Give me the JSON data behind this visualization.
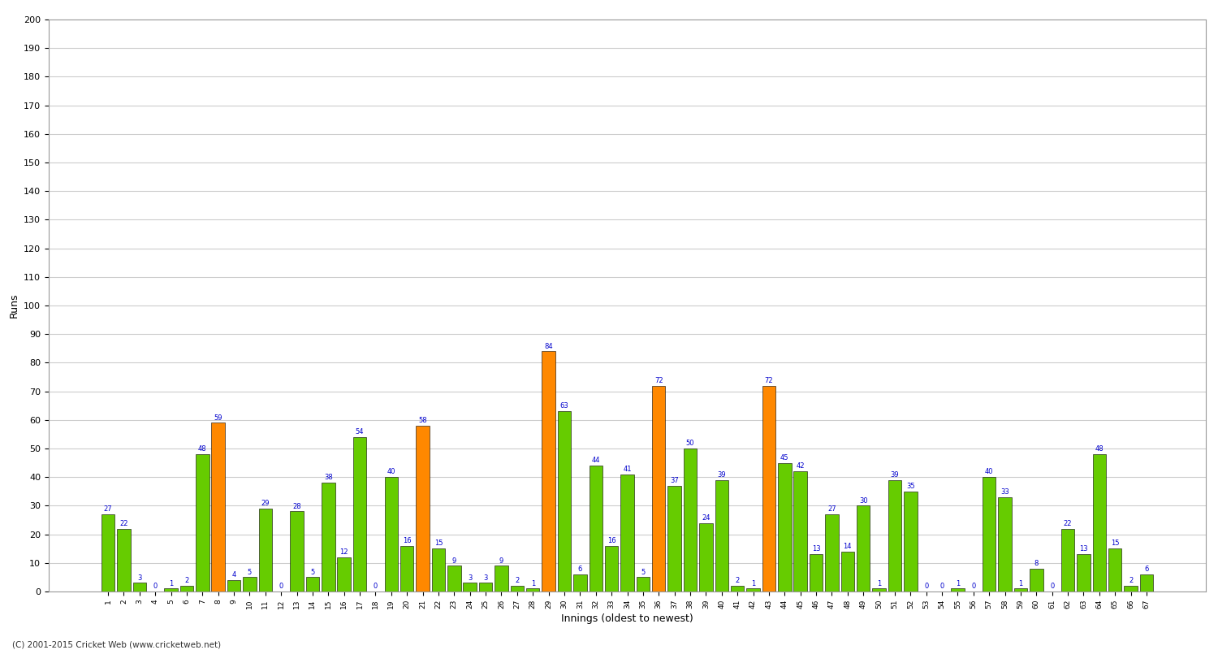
{
  "title": "",
  "xlabel": "Innings (oldest to newest)",
  "ylabel": "Runs",
  "background_color": "#ffffff",
  "grid_color": "#cccccc",
  "bar_color_green": "#66cc00",
  "bar_color_orange": "#ff8800",
  "label_color": "#0000cc",
  "ylim": [
    0,
    200
  ],
  "yticks": [
    0,
    10,
    20,
    30,
    40,
    50,
    60,
    70,
    80,
    90,
    100,
    110,
    120,
    130,
    140,
    150,
    160,
    170,
    180,
    190,
    200
  ],
  "innings": [
    {
      "num": 1,
      "runs": 27,
      "not_out": false
    },
    {
      "num": 2,
      "runs": 22,
      "not_out": false
    },
    {
      "num": 3,
      "runs": 3,
      "not_out": false
    },
    {
      "num": 4,
      "runs": 0,
      "not_out": false
    },
    {
      "num": 5,
      "runs": 1,
      "not_out": false
    },
    {
      "num": 6,
      "runs": 2,
      "not_out": false
    },
    {
      "num": 7,
      "runs": 48,
      "not_out": false
    },
    {
      "num": 8,
      "runs": 59,
      "not_out": true
    },
    {
      "num": 9,
      "runs": 4,
      "not_out": false
    },
    {
      "num": 10,
      "runs": 5,
      "not_out": false
    },
    {
      "num": 11,
      "runs": 29,
      "not_out": false
    },
    {
      "num": 12,
      "runs": 0,
      "not_out": false
    },
    {
      "num": 13,
      "runs": 28,
      "not_out": false
    },
    {
      "num": 14,
      "runs": 5,
      "not_out": false
    },
    {
      "num": 15,
      "runs": 38,
      "not_out": false
    },
    {
      "num": 16,
      "runs": 12,
      "not_out": false
    },
    {
      "num": 17,
      "runs": 54,
      "not_out": false
    },
    {
      "num": 18,
      "runs": 0,
      "not_out": false
    },
    {
      "num": 19,
      "runs": 40,
      "not_out": false
    },
    {
      "num": 20,
      "runs": 16,
      "not_out": false
    },
    {
      "num": 21,
      "runs": 58,
      "not_out": true
    },
    {
      "num": 22,
      "runs": 15,
      "not_out": false
    },
    {
      "num": 23,
      "runs": 9,
      "not_out": false
    },
    {
      "num": 24,
      "runs": 3,
      "not_out": false
    },
    {
      "num": 25,
      "runs": 3,
      "not_out": false
    },
    {
      "num": 26,
      "runs": 9,
      "not_out": false
    },
    {
      "num": 27,
      "runs": 2,
      "not_out": false
    },
    {
      "num": 28,
      "runs": 1,
      "not_out": false
    },
    {
      "num": 29,
      "runs": 84,
      "not_out": true
    },
    {
      "num": 30,
      "runs": 63,
      "not_out": false
    },
    {
      "num": 31,
      "runs": 6,
      "not_out": false
    },
    {
      "num": 32,
      "runs": 44,
      "not_out": false
    },
    {
      "num": 33,
      "runs": 16,
      "not_out": false
    },
    {
      "num": 34,
      "runs": 41,
      "not_out": false
    },
    {
      "num": 35,
      "runs": 5,
      "not_out": false
    },
    {
      "num": 36,
      "runs": 72,
      "not_out": true
    },
    {
      "num": 37,
      "runs": 37,
      "not_out": false
    },
    {
      "num": 38,
      "runs": 50,
      "not_out": false
    },
    {
      "num": 39,
      "runs": 24,
      "not_out": false
    },
    {
      "num": 40,
      "runs": 39,
      "not_out": false
    },
    {
      "num": 41,
      "runs": 2,
      "not_out": false
    },
    {
      "num": 42,
      "runs": 1,
      "not_out": false
    },
    {
      "num": 43,
      "runs": 72,
      "not_out": true
    },
    {
      "num": 44,
      "runs": 45,
      "not_out": false
    },
    {
      "num": 45,
      "runs": 42,
      "not_out": false
    },
    {
      "num": 46,
      "runs": 13,
      "not_out": false
    },
    {
      "num": 47,
      "runs": 27,
      "not_out": false
    },
    {
      "num": 48,
      "runs": 14,
      "not_out": false
    },
    {
      "num": 49,
      "runs": 30,
      "not_out": false
    },
    {
      "num": 50,
      "runs": 1,
      "not_out": false
    },
    {
      "num": 51,
      "runs": 39,
      "not_out": false
    },
    {
      "num": 52,
      "runs": 35,
      "not_out": false
    },
    {
      "num": 53,
      "runs": 0,
      "not_out": false
    },
    {
      "num": 54,
      "runs": 0,
      "not_out": false
    },
    {
      "num": 55,
      "runs": 1,
      "not_out": false
    },
    {
      "num": 56,
      "runs": 0,
      "not_out": false
    },
    {
      "num": 57,
      "runs": 40,
      "not_out": false
    },
    {
      "num": 58,
      "runs": 33,
      "not_out": false
    },
    {
      "num": 59,
      "runs": 1,
      "not_out": false
    },
    {
      "num": 60,
      "runs": 8,
      "not_out": false
    },
    {
      "num": 61,
      "runs": 0,
      "not_out": false
    },
    {
      "num": 62,
      "runs": 22,
      "not_out": false
    },
    {
      "num": 63,
      "runs": 13,
      "not_out": false
    },
    {
      "num": 64,
      "runs": 48,
      "not_out": false
    },
    {
      "num": 65,
      "runs": 15,
      "not_out": false
    },
    {
      "num": 66,
      "runs": 2,
      "not_out": false
    },
    {
      "num": 67,
      "runs": 6,
      "not_out": false
    }
  ],
  "footer": "(C) 2001-2015 Cricket Web (www.cricketweb.net)"
}
